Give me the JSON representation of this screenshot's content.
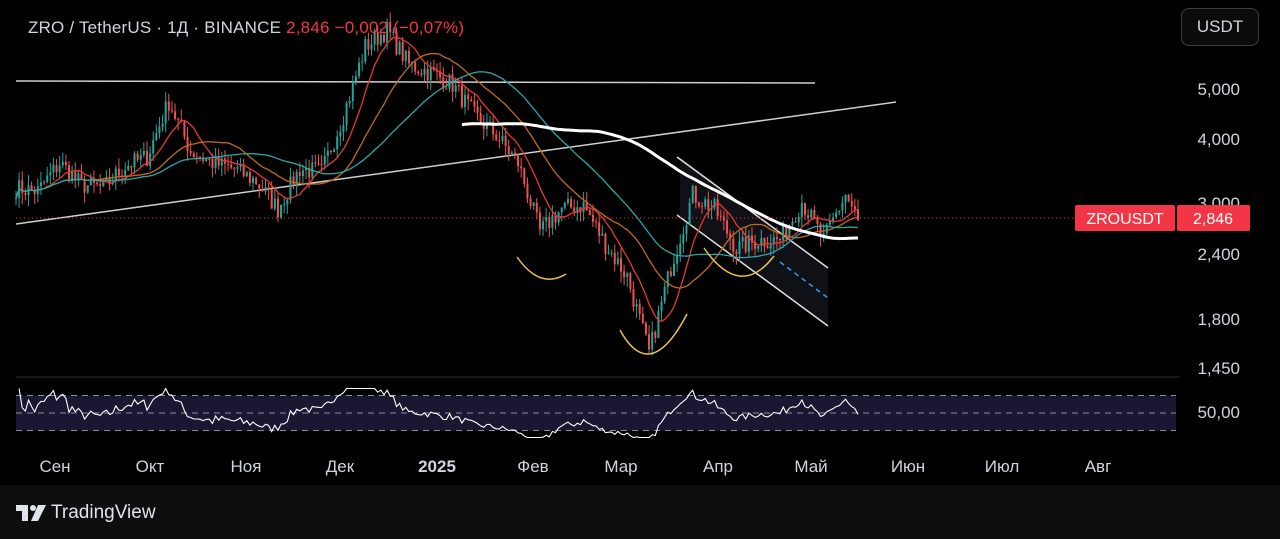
{
  "header": {
    "symbol_text": "ZRO / TetherUS · 1Д · BINANCE",
    "change_text": "2,846  −0,002 (−0,07%)"
  },
  "currency_button": "USDT",
  "footer": {
    "brand": "TradingView"
  },
  "price_label": {
    "symbol": "ZROUSDT",
    "value": "2,846"
  },
  "chart_data": [
    {
      "type": "candlestick",
      "name": "ZRO / TetherUS",
      "scale": "log",
      "y_axis": {
        "ticks": [
          "5,000",
          "4,000",
          "3,000",
          "2,400",
          "1,800",
          "1,450"
        ],
        "tick_values": [
          5.0,
          4.0,
          3.0,
          2.4,
          1.8,
          1.45
        ]
      },
      "x_axis": {
        "ticks": [
          "Сен",
          "Окт",
          "Ноя",
          "Дек",
          "2025",
          "Фев",
          "Мар",
          "Апр",
          "Май",
          "Июн",
          "Июл",
          "Авг"
        ]
      },
      "last_price": 2.846,
      "close_series": [
        {
          "date": "2024-08-20",
          "close": 3.3
        },
        {
          "date": "2024-08-27",
          "close": 3.25
        },
        {
          "date": "2024-09-03",
          "close": 3.7
        },
        {
          "date": "2024-09-10",
          "close": 3.35
        },
        {
          "date": "2024-09-17",
          "close": 3.3
        },
        {
          "date": "2024-09-24",
          "close": 3.65
        },
        {
          "date": "2024-10-01",
          "close": 3.8
        },
        {
          "date": "2024-10-08",
          "close": 4.9
        },
        {
          "date": "2024-10-15",
          "close": 3.9
        },
        {
          "date": "2024-10-22",
          "close": 3.7
        },
        {
          "date": "2024-10-29",
          "close": 3.6
        },
        {
          "date": "2024-11-05",
          "close": 3.4
        },
        {
          "date": "2024-11-12",
          "close": 3.0
        },
        {
          "date": "2024-11-19",
          "close": 3.6
        },
        {
          "date": "2024-11-26",
          "close": 3.55
        },
        {
          "date": "2024-12-03",
          "close": 4.6
        },
        {
          "date": "2024-12-10",
          "close": 6.3
        },
        {
          "date": "2024-12-17",
          "close": 6.8
        },
        {
          "date": "2024-12-24",
          "close": 5.8
        },
        {
          "date": "2024-12-31",
          "close": 5.6
        },
        {
          "date": "2025-01-07",
          "close": 5.3
        },
        {
          "date": "2025-01-14",
          "close": 4.6
        },
        {
          "date": "2025-01-21",
          "close": 4.2
        },
        {
          "date": "2025-01-28",
          "close": 3.7
        },
        {
          "date": "2025-02-04",
          "close": 2.7
        },
        {
          "date": "2025-02-11",
          "close": 3.0
        },
        {
          "date": "2025-02-18",
          "close": 3.05
        },
        {
          "date": "2025-02-25",
          "close": 2.55
        },
        {
          "date": "2025-03-04",
          "close": 2.2
        },
        {
          "date": "2025-03-11",
          "close": 1.55
        },
        {
          "date": "2025-03-18",
          "close": 2.3
        },
        {
          "date": "2025-03-25",
          "close": 3.2
        },
        {
          "date": "2025-04-01",
          "close": 3.0
        },
        {
          "date": "2025-04-08",
          "close": 2.5
        },
        {
          "date": "2025-04-15",
          "close": 2.6
        },
        {
          "date": "2025-04-22",
          "close": 2.6
        },
        {
          "date": "2025-04-29",
          "close": 3.1
        },
        {
          "date": "2025-05-06",
          "close": 2.6
        },
        {
          "date": "2025-05-13",
          "close": 3.2
        },
        {
          "date": "2025-05-17",
          "close": 2.846
        }
      ]
    },
    {
      "type": "line",
      "name": "RSI",
      "y_axis": {
        "ticks": [
          "50,00"
        ],
        "tick_values": [
          50
        ]
      },
      "bands": [
        70,
        50,
        30
      ]
    }
  ],
  "colors": {
    "background": "#000000",
    "up": "#26a69a",
    "down": "#ef5350",
    "ma_red": "#e53935",
    "ma_orange": "#c26a1f",
    "ma_teal": "#2aa7a7",
    "ma_white": "#ffffff",
    "price_label_bg": "#f23645",
    "rsi_band": "#1a1733"
  }
}
